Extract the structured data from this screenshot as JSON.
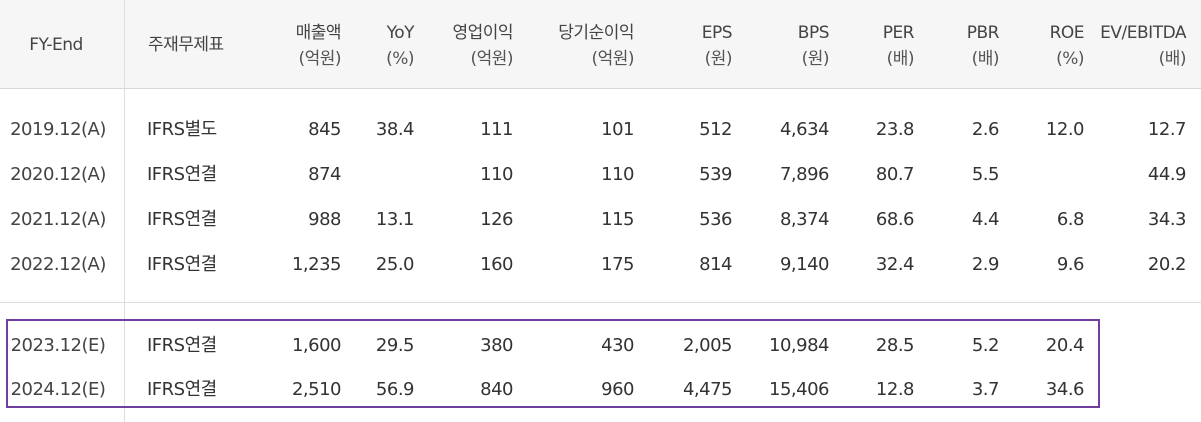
{
  "header": {
    "fy_end": "FY-End",
    "statement": "주재무제표",
    "revenue": [
      "매출액",
      "(억원)"
    ],
    "yoy": [
      "YoY",
      "(%)"
    ],
    "op_income": [
      "영업이익",
      "(억원)"
    ],
    "net_income": [
      "당기순이익",
      "(억원)"
    ],
    "eps": [
      "EPS",
      "(원)"
    ],
    "bps": [
      "BPS",
      "(원)"
    ],
    "per": [
      "PER",
      "(배)"
    ],
    "pbr": [
      "PBR",
      "(배)"
    ],
    "roe": [
      "ROE",
      "(%)"
    ],
    "ev_ebitda": [
      "EV/EBITDA",
      "(배)"
    ]
  },
  "rows": [
    {
      "fy": "2019.12(A)",
      "stmt": "IFRS별도",
      "rev": "845",
      "yoy": "38.4",
      "op": "111",
      "net": "101",
      "eps": "512",
      "bps": "4,634",
      "per": "23.8",
      "pbr": "2.6",
      "roe": "12.0",
      "ev": "12.7"
    },
    {
      "fy": "2020.12(A)",
      "stmt": "IFRS연결",
      "rev": "874",
      "yoy": "",
      "op": "110",
      "net": "110",
      "eps": "539",
      "bps": "7,896",
      "per": "80.7",
      "pbr": "5.5",
      "roe": "",
      "ev": "44.9"
    },
    {
      "fy": "2021.12(A)",
      "stmt": "IFRS연결",
      "rev": "988",
      "yoy": "13.1",
      "op": "126",
      "net": "115",
      "eps": "536",
      "bps": "8,374",
      "per": "68.6",
      "pbr": "4.4",
      "roe": "6.8",
      "ev": "34.3"
    },
    {
      "fy": "2022.12(A)",
      "stmt": "IFRS연결",
      "rev": "1,235",
      "yoy": "25.0",
      "op": "160",
      "net": "175",
      "eps": "814",
      "bps": "9,140",
      "per": "32.4",
      "pbr": "2.9",
      "roe": "9.6",
      "ev": "20.2"
    },
    {
      "fy": "2023.12(E)",
      "stmt": "IFRS연결",
      "rev": "1,600",
      "yoy": "29.5",
      "op": "380",
      "net": "430",
      "eps": "2,005",
      "bps": "10,984",
      "per": "28.5",
      "pbr": "5.2",
      "roe": "20.4",
      "ev": ""
    },
    {
      "fy": "2024.12(E)",
      "stmt": "IFRS연결",
      "rev": "2,510",
      "yoy": "56.9",
      "op": "840",
      "net": "960",
      "eps": "4,475",
      "bps": "15,406",
      "per": "12.8",
      "pbr": "3.7",
      "roe": "34.6",
      "ev": ""
    }
  ],
  "colors": {
    "estimate_box": "#6f3e9e",
    "header_bg": "#f6f6f6"
  }
}
